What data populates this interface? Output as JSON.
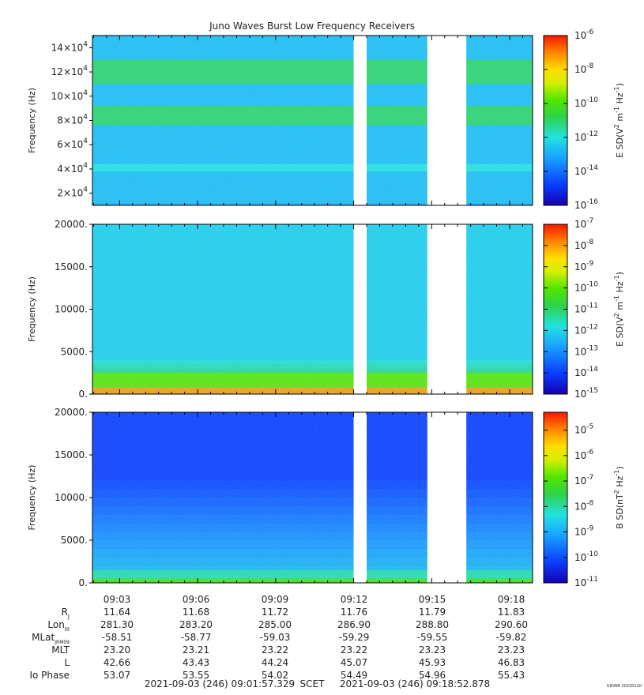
{
  "title": "Juno Waves Burst Low Frequency Receivers",
  "time_ticks": [
    "09:03",
    "09:06",
    "09:09",
    "09:12",
    "09:15",
    "09:18"
  ],
  "chart_data": [
    {
      "type": "heatmap",
      "name": "",
      "ylabel": "Frequency (Hz)",
      "ylim": [
        10000,
        150000
      ],
      "yticks": [
        {
          "v": 20000,
          "mant": "2×10",
          "exp": "4"
        },
        {
          "v": 40000,
          "mant": "4×10",
          "exp": "4"
        },
        {
          "v": 60000,
          "mant": "6×10",
          "exp": "4"
        },
        {
          "v": 80000,
          "mant": "8×10",
          "exp": "4"
        },
        {
          "v": 100000,
          "mant": "10×10",
          "exp": "4"
        },
        {
          "v": 120000,
          "mant": "12×10",
          "exp": "4"
        },
        {
          "v": 140000,
          "mant": "14×10",
          "exp": "4"
        }
      ],
      "colorbar": {
        "label_base": "E SD(V",
        "label_units": " m",
        "label_units2": " Hz",
        "exp_pow_min": -16,
        "exp_pow_max": -6,
        "tick_exps": [
          "-6",
          "-8",
          "-10",
          "-12",
          "-14",
          "-16"
        ]
      },
      "data_gaps": [
        [
          "09:12:00",
          "09:12:30"
        ],
        [
          "09:14:50",
          "09:16:20"
        ]
      ],
      "bands": [
        {
          "freq_range": [
            110000,
            130000
          ],
          "level": 1e-11
        },
        {
          "freq_range": [
            76000,
            92000
          ],
          "level": 1e-11
        },
        {
          "freq_range": [
            38000,
            44000
          ],
          "level": 1e-12
        },
        {
          "freq_range": [
            10000,
            12000
          ],
          "level": 1e-13
        }
      ]
    },
    {
      "type": "heatmap",
      "name": "",
      "ylabel": "Frequency (Hz)",
      "ylim": [
        0,
        20000
      ],
      "yticks": [
        {
          "v": 0,
          "label": "0."
        },
        {
          "v": 5000,
          "label": "5000."
        },
        {
          "v": 10000,
          "label": "10000."
        },
        {
          "v": 15000,
          "label": "15000."
        },
        {
          "v": 20000,
          "label": "20000."
        }
      ],
      "colorbar": {
        "label_base": "E SD(V",
        "label_units": " m",
        "label_units2": " Hz",
        "exp_pow_min": -15,
        "exp_pow_max": -7,
        "tick_exps": [
          "-7",
          "-8",
          "-9",
          "-10",
          "-11",
          "-12",
          "-13",
          "-14",
          "-15"
        ]
      },
      "data_gaps": [
        [
          "09:12:00",
          "09:12:30"
        ],
        [
          "09:14:50",
          "09:16:20"
        ]
      ],
      "bands": [
        {
          "freq_range": [
            0,
            800
          ],
          "level": 1e-08
        },
        {
          "freq_range": [
            800,
            2500
          ],
          "level": 1e-10
        }
      ]
    },
    {
      "type": "heatmap",
      "name": "",
      "ylabel": "Frequency (Hz)",
      "ylim": [
        0,
        20000
      ],
      "yticks": [
        {
          "v": 0,
          "label": "0."
        },
        {
          "v": 5000,
          "label": "5000."
        },
        {
          "v": 10000,
          "label": "10000."
        },
        {
          "v": 15000,
          "label": "15000."
        },
        {
          "v": 20000,
          "label": "20000."
        }
      ],
      "colorbar": {
        "label_base": "B SD(nT",
        "label_units": " Hz",
        "label_units2": "",
        "exp_pow_min": -11,
        "exp_pow_max": -4.3,
        "tick_exps": [
          "-5",
          "-6",
          "-7",
          "-8",
          "-9",
          "-10",
          "-11"
        ]
      },
      "data_gaps": [
        [
          "09:12:00",
          "09:12:30"
        ],
        [
          "09:14:50",
          "09:16:20"
        ]
      ],
      "bands": [
        {
          "freq_range": [
            0,
            500
          ],
          "level": 1e-07
        },
        {
          "freq_range": [
            500,
            1500
          ],
          "level": 1e-08
        }
      ]
    }
  ],
  "ephemeris": {
    "rows": [
      {
        "label": "R",
        "sub": "J",
        "values": [
          "11.64",
          "11.68",
          "11.72",
          "11.76",
          "11.79",
          "11.83"
        ]
      },
      {
        "label": "Lon",
        "sub": "III",
        "values": [
          "281.30",
          "283.20",
          "285.00",
          "286.90",
          "288.80",
          "290.60"
        ]
      },
      {
        "label": "MLat",
        "sub": "JRM09",
        "values": [
          "-58.51",
          "-58.77",
          "-59.03",
          "-59.29",
          "-59.55",
          "-59.82"
        ]
      },
      {
        "label": "MLT",
        "sub": "",
        "values": [
          "23.20",
          "23.21",
          "23.22",
          "23.22",
          "23.23",
          "23.23"
        ]
      },
      {
        "label": "L",
        "sub": "",
        "values": [
          "42.66",
          "43.43",
          "44.24",
          "45.07",
          "45.93",
          "46.83"
        ]
      },
      {
        "label": "Io Phase",
        "sub": "",
        "values": [
          "53.07",
          "53.55",
          "54.02",
          "54.49",
          "54.96",
          "55.43"
        ]
      }
    ]
  },
  "footer": {
    "start": "2021-09-03 (246) 09:01:57.329",
    "scet": "SCET",
    "end": "2021-09-03 (246) 09:18:52.878"
  },
  "stamp": "UIOWA 20220120"
}
